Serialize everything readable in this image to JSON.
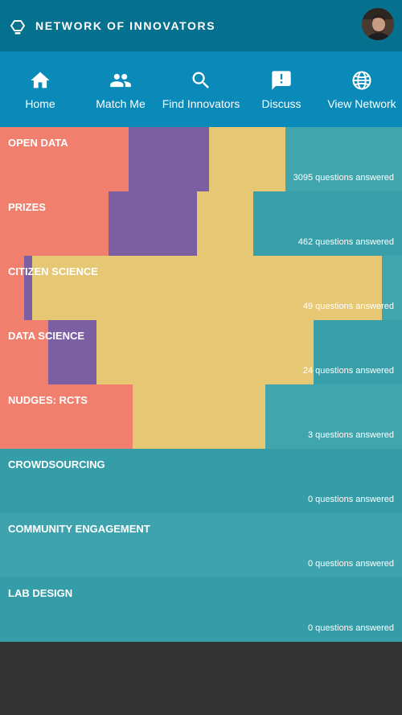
{
  "header": {
    "title": "NETWORK OF INNOVATORS"
  },
  "nav": {
    "items": [
      {
        "label": "Home",
        "icon": "home-icon"
      },
      {
        "label": "Match Me",
        "icon": "people-icon"
      },
      {
        "label": "Find Innovators",
        "icon": "search-icon"
      },
      {
        "label": "Discuss",
        "icon": "chat-icon"
      },
      {
        "label": "View Network",
        "icon": "globe-icon"
      }
    ]
  },
  "colors": {
    "header": "#06708f",
    "nav": "#0a8ab8",
    "coral": "#f0806d",
    "purple": "#7b5fa2",
    "yellow": "#e6c874",
    "teal": "#3aa1ac",
    "footer": "#333333"
  },
  "topics": [
    {
      "name": "OPEN DATA",
      "count": "3095 questions answered",
      "coral": 0.32,
      "purple": 0.2,
      "yellow": 0.19,
      "bg": "#41a5ae"
    },
    {
      "name": "PRIZES",
      "count": "462 questions answered",
      "coral": 0.27,
      "purple": 0.22,
      "yellow": 0.14,
      "bg": "#389fa9"
    },
    {
      "name": "CITIZEN SCIENCE",
      "count": "49 questions answered",
      "coral": 0.06,
      "purple": 0.02,
      "yellow": 0.87,
      "bg": "#41a5ae"
    },
    {
      "name": "DATA SCIENCE",
      "count": "24 questions answered",
      "coral": 0.12,
      "purple": 0.12,
      "yellow": 0.54,
      "bg": "#389fa9"
    },
    {
      "name": "NUDGES: RCTS",
      "count": "3 questions answered",
      "coral": 0.33,
      "purple": 0.0,
      "yellow": 0.33,
      "bg": "#41a5ae"
    },
    {
      "name": "CROWDSOURCING",
      "count": "0 questions answered",
      "coral": 0,
      "purple": 0,
      "yellow": 0,
      "bg": "#349da7"
    },
    {
      "name": "COMMUNITY ENGAGEMENT",
      "count": "0 questions answered",
      "coral": 0,
      "purple": 0,
      "yellow": 0,
      "bg": "#3ea3ad"
    },
    {
      "name": "LAB DESIGN",
      "count": "0 questions answered",
      "coral": 0,
      "purple": 0,
      "yellow": 0,
      "bg": "#349da7"
    }
  ]
}
